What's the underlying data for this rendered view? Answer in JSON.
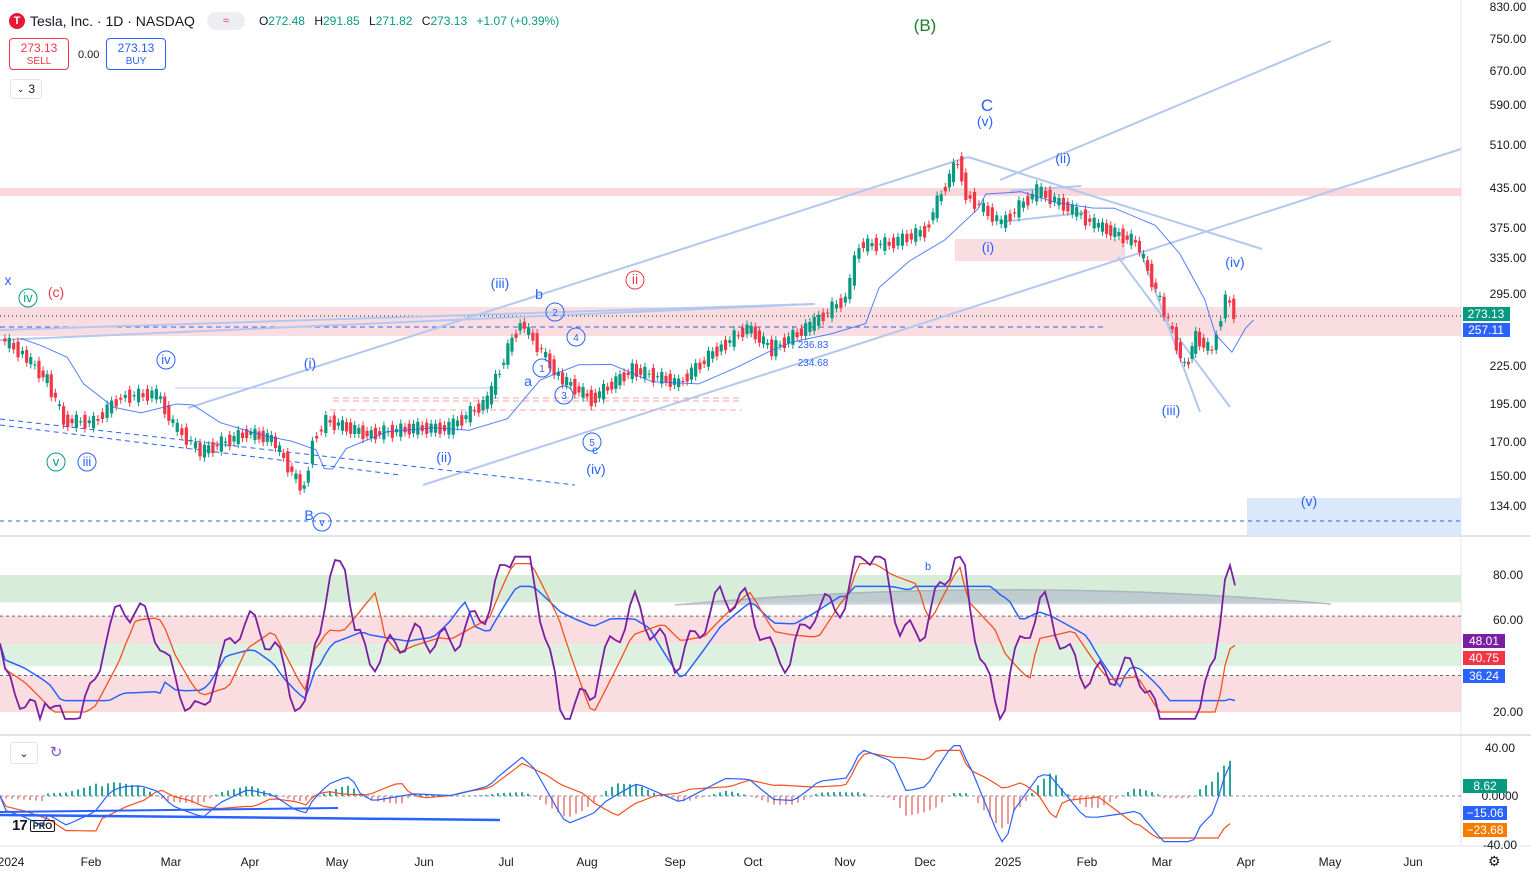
{
  "header": {
    "logo_letter": "T",
    "symbol": "Tesla, Inc. · 1D · NASDAQ",
    "pill_icon": "≈",
    "o_label": "O",
    "o": "272.48",
    "h_label": "H",
    "h": "291.85",
    "l_label": "L",
    "l": "271.82",
    "c_label": "C",
    "c": "273.13",
    "change": "+1.07 (+0.39%)"
  },
  "trade": {
    "sell_price": "273.13",
    "sell_label": "SELL",
    "spread": "0.00",
    "buy_price": "273.13",
    "buy_label": "BUY"
  },
  "collapse": {
    "count": "3",
    "icon": "chevron-down-icon"
  },
  "colors": {
    "up": "#089981",
    "down": "#f23645",
    "wave": "#2962ff",
    "channel": "#b2c8f0",
    "rsi": "#7b1fa2"
  },
  "chart_data": [
    {
      "type": "candlestick",
      "title": "",
      "price_axis": [
        "830.00",
        "750.00",
        "670.00",
        "590.00",
        "510.00",
        "435.00",
        "375.00",
        "335.00",
        "295.00",
        "225.00",
        "195.00",
        "170.00",
        "150.00",
        "134.00"
      ],
      "scale": "log",
      "time_axis": [
        "2024",
        "Feb",
        "Mar",
        "Apr",
        "May",
        "Jun",
        "Jul",
        "Aug",
        "Sep",
        "Oct",
        "Nov",
        "Dec",
        "2025",
        "Feb",
        "Mar",
        "Apr",
        "May",
        "Jun"
      ],
      "last_price_label": "273.13",
      "ma_label": "257.11",
      "close_series": [
        {
          "d": "2024-01-02",
          "v": 248
        },
        {
          "d": "2024-01-10",
          "v": 234
        },
        {
          "d": "2024-01-19",
          "v": 212
        },
        {
          "d": "2024-01-25",
          "v": 183
        },
        {
          "d": "2024-02-05",
          "v": 182
        },
        {
          "d": "2024-02-15",
          "v": 200
        },
        {
          "d": "2024-02-28",
          "v": 202
        },
        {
          "d": "2024-03-05",
          "v": 180
        },
        {
          "d": "2024-03-15",
          "v": 163
        },
        {
          "d": "2024-04-01",
          "v": 175
        },
        {
          "d": "2024-04-10",
          "v": 171
        },
        {
          "d": "2024-04-19",
          "v": 147
        },
        {
          "d": "2024-04-22",
          "v": 142
        },
        {
          "d": "2024-04-25",
          "v": 170
        },
        {
          "d": "2024-04-30",
          "v": 183
        },
        {
          "d": "2024-05-15",
          "v": 174
        },
        {
          "d": "2024-06-01",
          "v": 178
        },
        {
          "d": "2024-06-14",
          "v": 178
        },
        {
          "d": "2024-06-28",
          "v": 197
        },
        {
          "d": "2024-07-10",
          "v": 263
        },
        {
          "d": "2024-07-24",
          "v": 215
        },
        {
          "d": "2024-08-05",
          "v": 198
        },
        {
          "d": "2024-08-20",
          "v": 221
        },
        {
          "d": "2024-09-06",
          "v": 210
        },
        {
          "d": "2024-09-20",
          "v": 238
        },
        {
          "d": "2024-10-01",
          "v": 258
        },
        {
          "d": "2024-10-10",
          "v": 238
        },
        {
          "d": "2024-10-24",
          "v": 260
        },
        {
          "d": "2024-11-06",
          "v": 288
        },
        {
          "d": "2024-11-11",
          "v": 350
        },
        {
          "d": "2024-11-22",
          "v": 352
        },
        {
          "d": "2024-12-05",
          "v": 369
        },
        {
          "d": "2024-12-17",
          "v": 479
        },
        {
          "d": "2024-12-20",
          "v": 421
        },
        {
          "d": "2025-01-02",
          "v": 379
        },
        {
          "d": "2025-01-15",
          "v": 428
        },
        {
          "d": "2025-01-28",
          "v": 398
        },
        {
          "d": "2025-02-05",
          "v": 378
        },
        {
          "d": "2025-02-20",
          "v": 354
        },
        {
          "d": "2025-03-01",
          "v": 284
        },
        {
          "d": "2025-03-10",
          "v": 222
        },
        {
          "d": "2025-03-14",
          "v": 249
        },
        {
          "d": "2025-03-20",
          "v": 236
        },
        {
          "d": "2025-03-25",
          "v": 288
        },
        {
          "d": "2025-03-28",
          "v": 273
        }
      ],
      "annotations": [
        "(B)",
        "C",
        "(v)",
        "(ii)",
        "(i)",
        "(iv)",
        "(iii)",
        "(v)",
        "x",
        "(c)",
        "iv",
        "iv",
        "v",
        "iii",
        "(i)",
        "(ii)",
        "(iii)",
        "b",
        "a",
        "ii",
        "(iv)",
        "c",
        "1",
        "2",
        "3",
        "4",
        "5",
        "B",
        "v",
        "236.83",
        "234.68"
      ]
    },
    {
      "type": "line",
      "title": "",
      "y_axis": [
        "80.00",
        "60.00",
        "20.00"
      ],
      "value_labels": [
        "48.01",
        "40.75",
        "36.24"
      ],
      "annotations": [
        "b"
      ]
    },
    {
      "type": "bar",
      "title": "",
      "y_axis": [
        "40.00",
        "0.0000",
        "-40.00"
      ],
      "value_labels": [
        "8.62",
        "−15.06",
        "−23.68"
      ]
    }
  ],
  "branding": {
    "logo": "17",
    "pro": "PRO"
  }
}
